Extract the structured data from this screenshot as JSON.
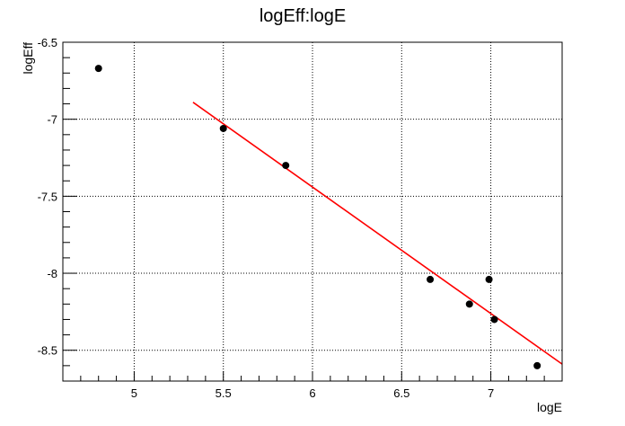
{
  "chart_data": {
    "type": "scatter",
    "title": "logEff:logE",
    "xlabel": "logE",
    "ylabel": "logEff",
    "xlim": [
      4.6,
      7.4
    ],
    "ylim": [
      -8.7,
      -6.5
    ],
    "xticks": [
      "5",
      "5.5",
      "6",
      "6.5",
      "7"
    ],
    "yticks": [
      "-6.5",
      "-7",
      "-7.5",
      "-8",
      "-8.5"
    ],
    "grid": true,
    "series": [
      {
        "type": "scatter",
        "color": "#000000",
        "x": [
          4.8,
          5.5,
          5.85,
          6.66,
          6.88,
          6.99,
          7.02,
          7.26
        ],
        "y": [
          -6.67,
          -7.06,
          -7.3,
          -8.04,
          -8.2,
          -8.04,
          -8.3,
          -8.6
        ]
      },
      {
        "type": "line",
        "color": "#ff0000",
        "x": [
          5.33,
          7.4
        ],
        "y": [
          -6.89,
          -8.59
        ]
      }
    ]
  }
}
